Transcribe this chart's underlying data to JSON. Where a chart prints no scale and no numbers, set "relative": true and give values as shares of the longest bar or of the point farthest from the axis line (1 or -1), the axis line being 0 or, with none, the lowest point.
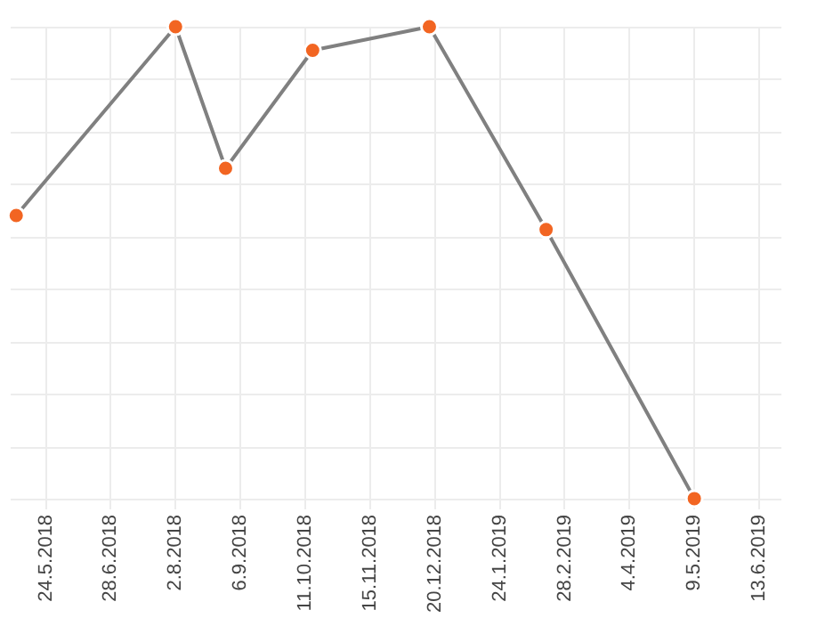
{
  "chart_data": {
    "type": "line",
    "relative": true,
    "x": [
      "2018-05-08",
      "2018-08-02",
      "2018-08-29",
      "2018-10-15",
      "2018-12-17",
      "2019-02-18",
      "2019-05-09"
    ],
    "series": [
      {
        "color": "#808080",
        "colors": [
          "#f26522",
          "#f26522",
          "#f26522",
          "#f26522",
          "#f26522",
          "#f26522",
          "#f26522"
        ],
        "values": [
          0.6,
          1,
          0.7,
          0.95,
          1,
          0.57,
          0
        ]
      }
    ],
    "marker": "circle",
    "line_style": "solid",
    "grid": true,
    "legend": false,
    "xlim": [
      "2018-05-05",
      "2019-06-25"
    ],
    "xticks": [
      {
        "value": "2018-05-24",
        "label": "24.5.2018"
      },
      {
        "value": "2018-06-28",
        "label": "28.6.2018"
      },
      {
        "value": "2018-08-02",
        "label": "2.8.2018"
      },
      {
        "value": "2018-09-06",
        "label": "6.9.2018"
      },
      {
        "value": "2018-10-11",
        "label": "11.10.2018"
      },
      {
        "value": "2018-11-15",
        "label": "15.11.2018"
      },
      {
        "value": "2018-12-20",
        "label": "20.12.2018"
      },
      {
        "value": "2019-01-24",
        "label": "24.1.2019"
      },
      {
        "value": "2019-02-28",
        "label": "28.2.2019"
      },
      {
        "value": "2019-04-04",
        "label": "4.4.2019"
      },
      {
        "value": "2019-05-09",
        "label": "9.5.2019"
      },
      {
        "value": "2019-06-13",
        "label": "13.6.2019"
      }
    ]
  }
}
